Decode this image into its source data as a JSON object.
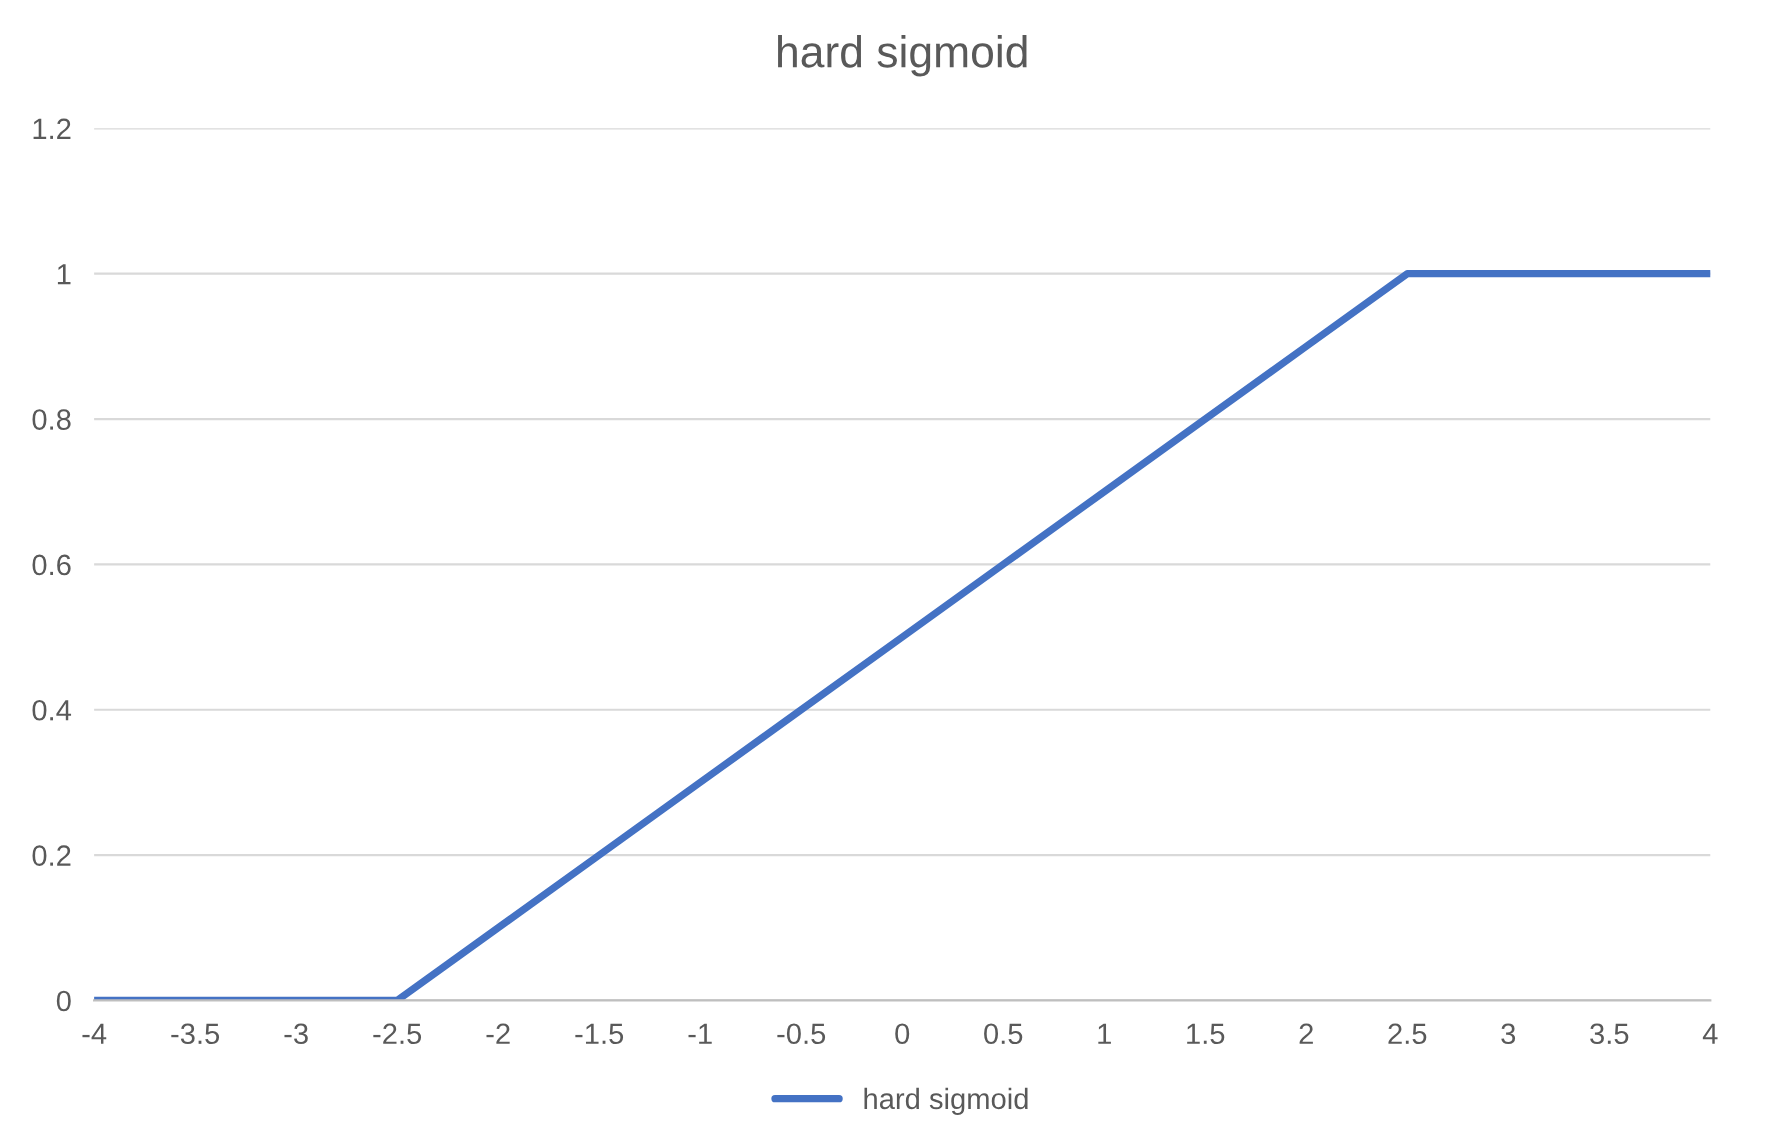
{
  "chart_data": {
    "type": "line",
    "title": "hard sigmoid",
    "series": [
      {
        "name": "hard sigmoid",
        "color": "#4472c4",
        "x": [
          -4,
          -3.5,
          -3,
          -2.5,
          -2,
          -1.5,
          -1,
          -0.5,
          0,
          0.5,
          1,
          1.5,
          2,
          2.5,
          3,
          3.5,
          4
        ],
        "values": [
          0,
          0,
          0,
          0,
          0.1,
          0.2,
          0.3,
          0.4,
          0.5,
          0.6,
          0.7,
          0.8,
          0.9,
          1,
          1,
          1,
          1
        ]
      }
    ],
    "xlim": [
      -4,
      4
    ],
    "xticks": [
      -4,
      -3.5,
      -3,
      -2.5,
      -2,
      -1.5,
      -1,
      -0.5,
      0,
      0.5,
      1,
      1.5,
      2,
      2.5,
      3,
      3.5,
      4
    ],
    "ylim": [
      0,
      1.2
    ],
    "yticks": [
      0,
      0.2,
      0.4,
      0.6,
      0.8,
      1,
      1.2
    ],
    "grid": "y",
    "legend": "bottom",
    "marker": "none",
    "line_style": "solid"
  }
}
